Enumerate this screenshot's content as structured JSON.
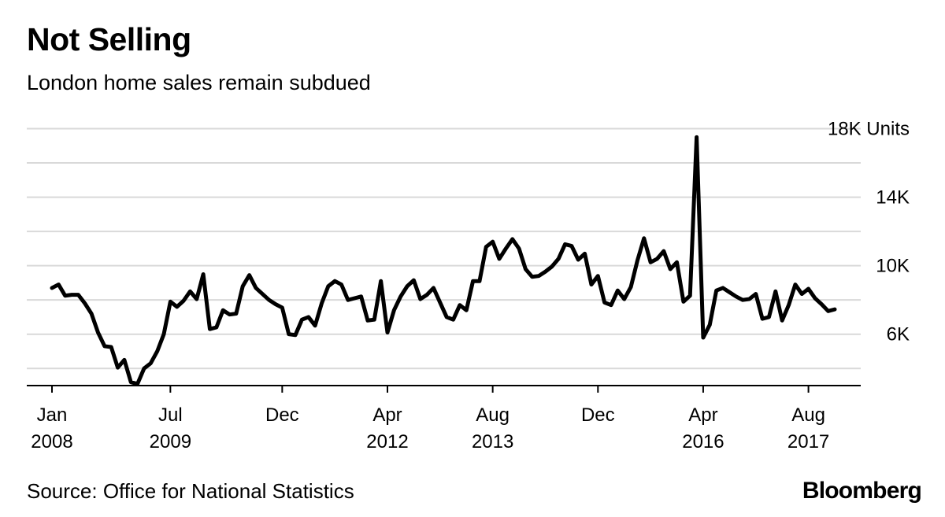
{
  "header": {
    "title": "Not Selling",
    "subtitle": "London home sales remain subdued"
  },
  "footer": {
    "source": "Source: Office for National Statistics",
    "brand": "Bloomberg"
  },
  "chart_data": {
    "type": "line",
    "title": "Not Selling",
    "subtitle": "London home sales remain subdued",
    "ylabel": "",
    "y_unit_label": "18K Units",
    "ylim": [
      3000,
      18000
    ],
    "y_ticks": [
      {
        "value": 18000,
        "label": "18K Units"
      },
      {
        "value": 16000,
        "label": ""
      },
      {
        "value": 14000,
        "label": "14K"
      },
      {
        "value": 12000,
        "label": ""
      },
      {
        "value": 10000,
        "label": "10K"
      },
      {
        "value": 8000,
        "label": ""
      },
      {
        "value": 6000,
        "label": "6K"
      },
      {
        "value": 4000,
        "label": ""
      }
    ],
    "x_ticks": [
      {
        "index": 0,
        "month": "Jan",
        "year": "2008"
      },
      {
        "index": 18,
        "month": "Jul",
        "year": "2009"
      },
      {
        "index": 35,
        "month": "Dec",
        "year": ""
      },
      {
        "index": 51,
        "month": "Apr",
        "year": "2012"
      },
      {
        "index": 67,
        "month": "Aug",
        "year": "2013"
      },
      {
        "index": 83,
        "month": "Dec",
        "year": ""
      },
      {
        "index": 99,
        "month": "Apr",
        "year": "2016"
      },
      {
        "index": 115,
        "month": "Aug",
        "year": "2017"
      }
    ],
    "grid": true,
    "legend": "none",
    "line_color": "#000000",
    "series": [
      {
        "start": "2008-01",
        "frequency": "monthly",
        "values": [
          8700,
          8900,
          8250,
          8300,
          8300,
          7800,
          7200,
          6100,
          5300,
          5250,
          4050,
          4500,
          3200,
          3100,
          4000,
          4300,
          5000,
          6000,
          7900,
          7600,
          7950,
          8500,
          8050,
          9500,
          6300,
          6400,
          7400,
          7150,
          7200,
          8800,
          9450,
          8700,
          8350,
          8000,
          7750,
          7550,
          6000,
          5950,
          6850,
          7000,
          6500,
          7800,
          8800,
          9100,
          8900,
          8000,
          8100,
          8200,
          6800,
          6850,
          9100,
          6100,
          7400,
          8200,
          8800,
          9150,
          8050,
          8300,
          8700,
          7850,
          7000,
          6850,
          7700,
          7400,
          9100,
          9100,
          11100,
          11400,
          10400,
          11000,
          11550,
          11000,
          9800,
          9350,
          9400,
          9650,
          9950,
          10400,
          11250,
          11150,
          10350,
          10700,
          8900,
          9400,
          7850,
          7700,
          8550,
          8050,
          8750,
          10300,
          11600,
          10200,
          10400,
          10850,
          9800,
          10200,
          7900,
          8250,
          17500,
          5800,
          6550,
          8550,
          8700,
          8450,
          8200,
          8000,
          8050,
          8350,
          6900,
          7000,
          8500,
          6800,
          7700,
          8900,
          8350,
          8650,
          8100,
          7750,
          7350,
          7450
        ]
      }
    ]
  }
}
